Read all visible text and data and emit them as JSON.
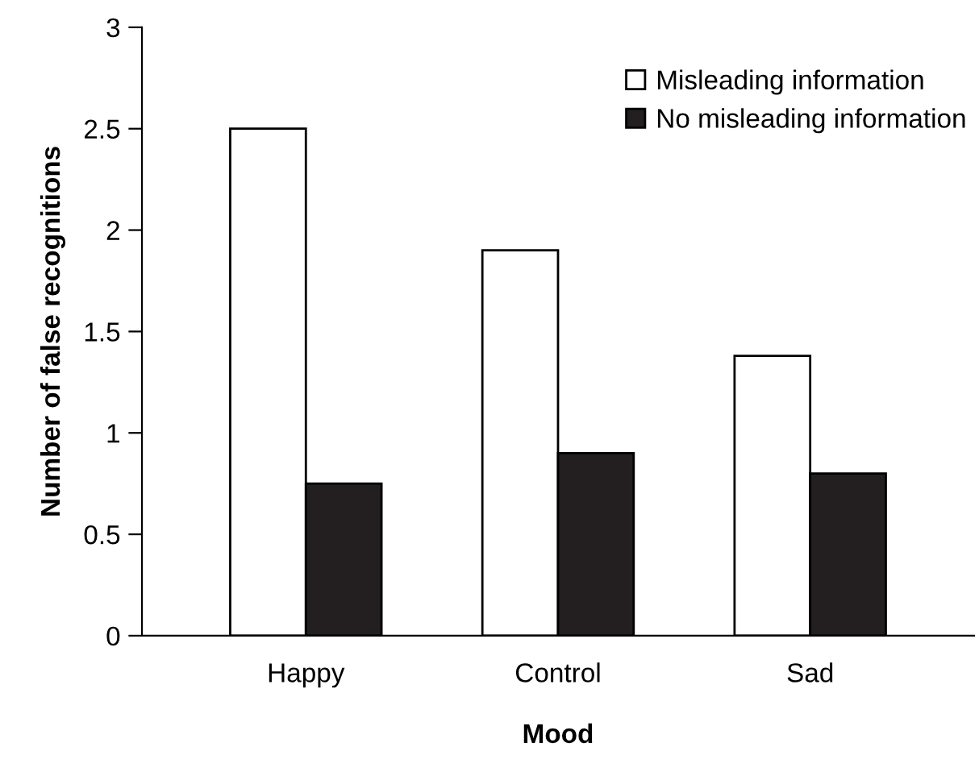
{
  "chart_data": {
    "type": "bar",
    "xlabel": "Mood",
    "ylabel": "Number of false recognitions",
    "categories": [
      "Happy",
      "Control",
      "Sad"
    ],
    "series": [
      {
        "name": "Misleading information",
        "color": "#ffffff",
        "values": [
          2.5,
          1.9,
          1.38
        ]
      },
      {
        "name": "No misleading information",
        "color": "#231f20",
        "values": [
          0.75,
          0.9,
          0.8
        ]
      }
    ],
    "ylim": [
      0,
      3
    ],
    "yticks": [
      0,
      0.5,
      1,
      1.5,
      2,
      2.5,
      3
    ],
    "grid": false,
    "legend": "top right"
  }
}
